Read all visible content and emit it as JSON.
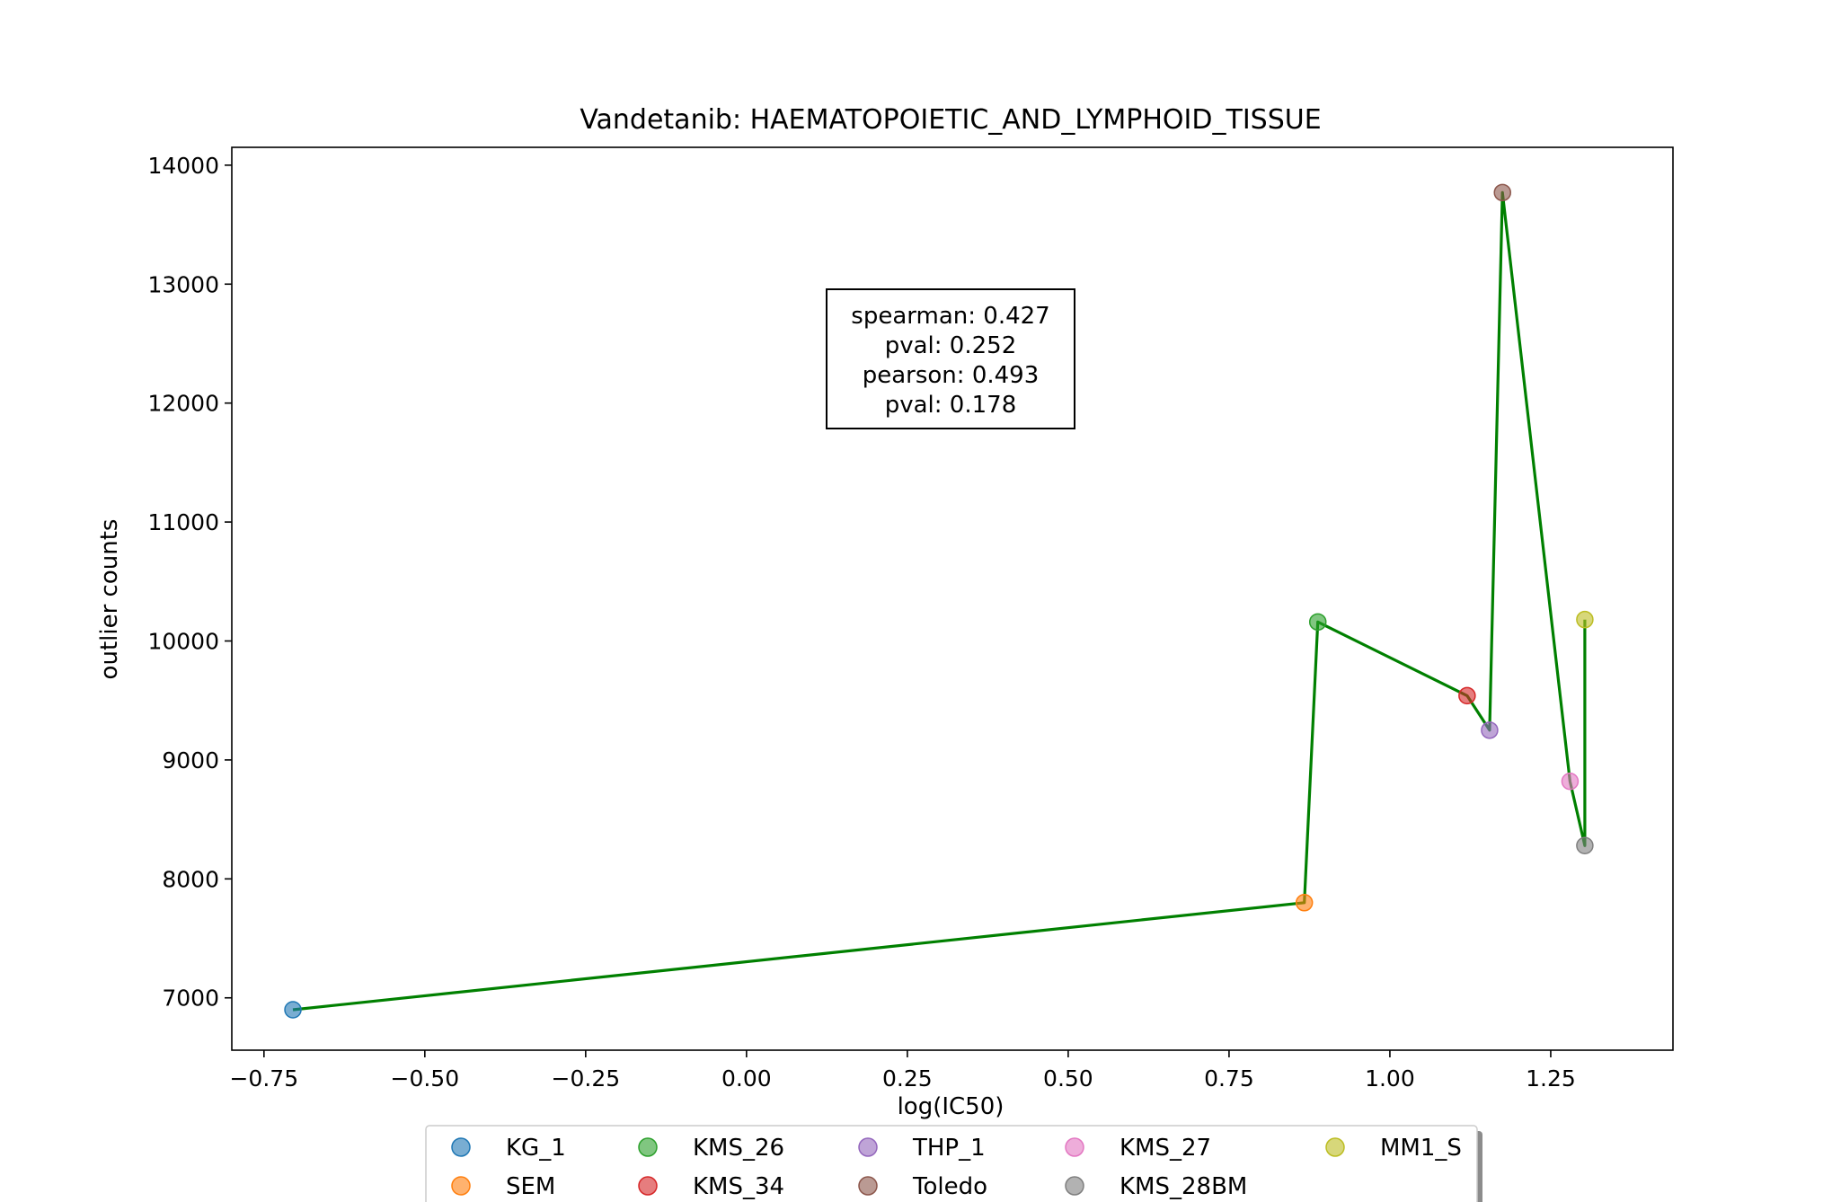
{
  "chart_data": {
    "type": "scatter",
    "title": "Vandetanib: HAEMATOPOIETIC_AND_LYMPHOID_TISSUE",
    "xlabel": "log(IC50)",
    "ylabel": "outlier counts",
    "xlim": [
      -0.8,
      1.44
    ],
    "ylim": [
      6560,
      14150
    ],
    "xticks": [
      -0.75,
      -0.5,
      -0.25,
      0.0,
      0.25,
      0.5,
      0.75,
      1.0,
      1.25
    ],
    "xtick_labels": [
      "−0.75",
      "−0.50",
      "−0.25",
      "0.00",
      "0.25",
      "0.50",
      "0.75",
      "1.00",
      "1.25"
    ],
    "yticks": [
      7000,
      8000,
      9000,
      10000,
      11000,
      12000,
      13000,
      14000
    ],
    "ytick_labels": [
      "7000",
      "8000",
      "9000",
      "10000",
      "11000",
      "12000",
      "13000",
      "14000"
    ],
    "grid": false,
    "series": [
      {
        "name": "KG_1",
        "x": -0.705,
        "y": 6900,
        "color": "#1f77b4"
      },
      {
        "name": "SEM",
        "x": 0.867,
        "y": 7800,
        "color": "#ff7f0e"
      },
      {
        "name": "KMS_26",
        "x": 0.888,
        "y": 10160,
        "color": "#2ca02c"
      },
      {
        "name": "KMS_34",
        "x": 1.12,
        "y": 9540,
        "color": "#d62728"
      },
      {
        "name": "THP_1",
        "x": 1.155,
        "y": 9250,
        "color": "#9467bd"
      },
      {
        "name": "Toledo",
        "x": 1.175,
        "y": 13770,
        "color": "#8c564b"
      },
      {
        "name": "KMS_27",
        "x": 1.28,
        "y": 8820,
        "color": "#e377c2"
      },
      {
        "name": "KMS_28BM",
        "x": 1.303,
        "y": 8280,
        "color": "#7f7f7f"
      },
      {
        "name": "MM1_S",
        "x": 1.303,
        "y": 10180,
        "color": "#bcbd22"
      }
    ],
    "trend_line": {
      "color": "#008000",
      "x": [
        -0.705,
        0.867,
        0.888,
        1.12,
        1.155,
        1.175,
        1.28,
        1.303,
        1.303
      ],
      "y": [
        6900,
        7800,
        10160,
        9540,
        9250,
        13770,
        8820,
        8280,
        10180
      ]
    },
    "annotation": [
      "spearman: 0.427",
      "pval: 0.252",
      "pearson: 0.493",
      "pval: 0.178"
    ],
    "legend": {
      "placement": "bottom-center",
      "columns": 5
    }
  }
}
